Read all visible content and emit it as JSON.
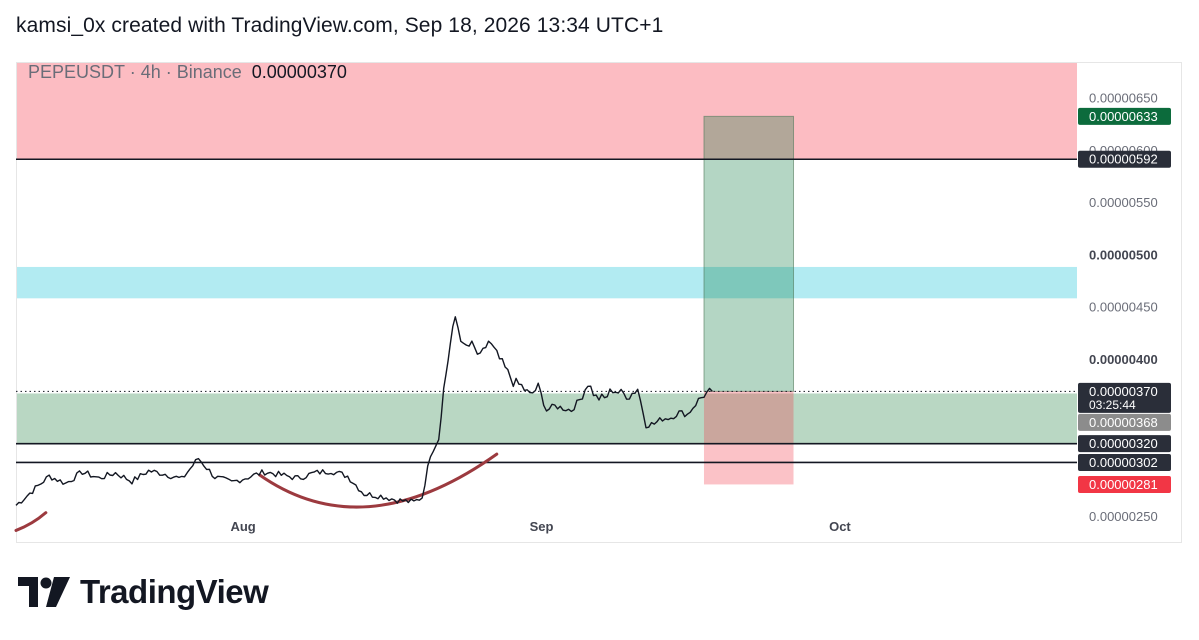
{
  "header": {
    "text": "kamsi_0x created with TradingView.com, Sep 18, 2026 13:34 UTC+1"
  },
  "symbol_bar": {
    "symbol": "PEPEUSDT · 4h · Binance",
    "price": "0.00000370"
  },
  "footer": {
    "brand": "TradingView"
  },
  "chart_data": {
    "type": "line",
    "symbol": "PEPEUSDT",
    "interval": "4h",
    "exchange": "Binance",
    "last_price": 3.7e-06,
    "ylim": [
      2.25e-06,
      6.85e-06
    ],
    "y_ticks": [
      {
        "value": 6.5e-06,
        "label": "0.00000650",
        "bold": false
      },
      {
        "value": 6e-06,
        "label": "0.00000600",
        "bold": false
      },
      {
        "value": 5.5e-06,
        "label": "0.00000550",
        "bold": false
      },
      {
        "value": 5e-06,
        "label": "0.00000500",
        "bold": true
      },
      {
        "value": 4.5e-06,
        "label": "0.00000450",
        "bold": false
      },
      {
        "value": 4e-06,
        "label": "0.00000400",
        "bold": true
      },
      {
        "value": 2.5e-06,
        "label": "0.00000250",
        "bold": false
      }
    ],
    "x_ticks": [
      {
        "index": 137,
        "label": "Aug"
      },
      {
        "index": 317,
        "label": "Sep"
      },
      {
        "index": 497,
        "label": "Oct"
      }
    ],
    "x_range": [
      0,
      640
    ],
    "price_tags": [
      {
        "value": 3.7e-06,
        "label": "0.00000370",
        "sub": "03:25:44",
        "color": "#2a2e39"
      },
      {
        "value": 6.33e-06,
        "label": "0.00000633",
        "sub": "",
        "color": "#0c6b3c"
      },
      {
        "value": 5.92e-06,
        "label": "0.00000592",
        "sub": "",
        "color": "#2a2e39"
      },
      {
        "value": 3.68e-06,
        "label": "0.00000368",
        "sub": "",
        "color": "#8c8c8c"
      },
      {
        "value": 3.2e-06,
        "label": "0.00000320",
        "sub": "",
        "color": "#2a2e39"
      },
      {
        "value": 3.02e-06,
        "label": "0.00000302",
        "sub": "",
        "color": "#2a2e39"
      },
      {
        "value": 2.81e-06,
        "label": "0.00000281",
        "sub": "",
        "color": "#f23645"
      }
    ],
    "zones": [
      {
        "kind": "supply",
        "from": 5.92e-06,
        "to": 6.85e-06,
        "color": "#fcbcc2"
      },
      {
        "kind": "resistance",
        "from": 4.59e-06,
        "to": 4.89e-06,
        "color": "#b2ebf2"
      },
      {
        "kind": "support",
        "from": 3.2e-06,
        "to": 3.68e-06,
        "color": "#b9d7c3"
      }
    ],
    "horizontal_lines": [
      5.92e-06,
      3.2e-06,
      3.02e-06
    ],
    "position": {
      "start_index": 415,
      "end_index": 469,
      "entry": 3.7e-06,
      "target": 6.33e-06,
      "stop": 2.81e-06
    },
    "rounding_curve": {
      "points_index": [
        [
          147,
          2.9e-06
        ],
        [
          210,
          2.2e-06
        ],
        [
          290,
          3.1e-06
        ]
      ]
    },
    "series": [
      {
        "name": "PEPEUSDT",
        "x": [
          0,
          10,
          20,
          30,
          40,
          50,
          60,
          70,
          80,
          90,
          100,
          110,
          120,
          130,
          140,
          150,
          160,
          170,
          180,
          190,
          200,
          210,
          220,
          230,
          240,
          245,
          250,
          255,
          258,
          262,
          265,
          270,
          275,
          280,
          285,
          290,
          295,
          300,
          305,
          310,
          315,
          320,
          325,
          330,
          335,
          340,
          345,
          350,
          355,
          360,
          365,
          370,
          375,
          380,
          385,
          390,
          395,
          400,
          405,
          410,
          415,
          420
        ],
        "values": [
          2.61e-06,
          2.75e-06,
          2.89e-06,
          2.82e-06,
          2.93e-06,
          2.87e-06,
          2.92e-06,
          2.84e-06,
          2.94e-06,
          2.91e-06,
          2.86e-06,
          3.06e-06,
          2.88e-06,
          2.83e-06,
          2.88e-06,
          2.93e-06,
          2.9e-06,
          2.87e-06,
          2.92e-06,
          2.94e-06,
          2.89e-06,
          2.72e-06,
          2.7e-06,
          2.66e-06,
          2.64e-06,
          2.69e-06,
          3.1e-06,
          3.25e-06,
          3.72e-06,
          4.15e-06,
          4.41e-06,
          4.12e-06,
          4.14e-06,
          4.02e-06,
          4.18e-06,
          4.05e-06,
          3.92e-06,
          3.79e-06,
          3.75e-06,
          3.66e-06,
          3.74e-06,
          3.52e-06,
          3.56e-06,
          3.54e-06,
          3.52e-06,
          3.62e-06,
          3.78e-06,
          3.64e-06,
          3.63e-06,
          3.72e-06,
          3.68e-06,
          3.66e-06,
          3.73e-06,
          3.38e-06,
          3.39e-06,
          3.44e-06,
          3.45e-06,
          3.5e-06,
          3.48e-06,
          3.58e-06,
          3.67e-06,
          3.7e-06
        ]
      }
    ]
  }
}
